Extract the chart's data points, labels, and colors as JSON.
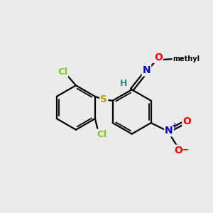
{
  "bg_color": "#ebebeb",
  "bond_color": "#000000",
  "atom_colors": {
    "Cl": "#7fc820",
    "S": "#b8a000",
    "N": "#0000cd",
    "O": "#ff0000",
    "H": "#2e8b8b",
    "C": "#000000"
  },
  "figsize": [
    3.0,
    3.0
  ],
  "dpi": 100
}
